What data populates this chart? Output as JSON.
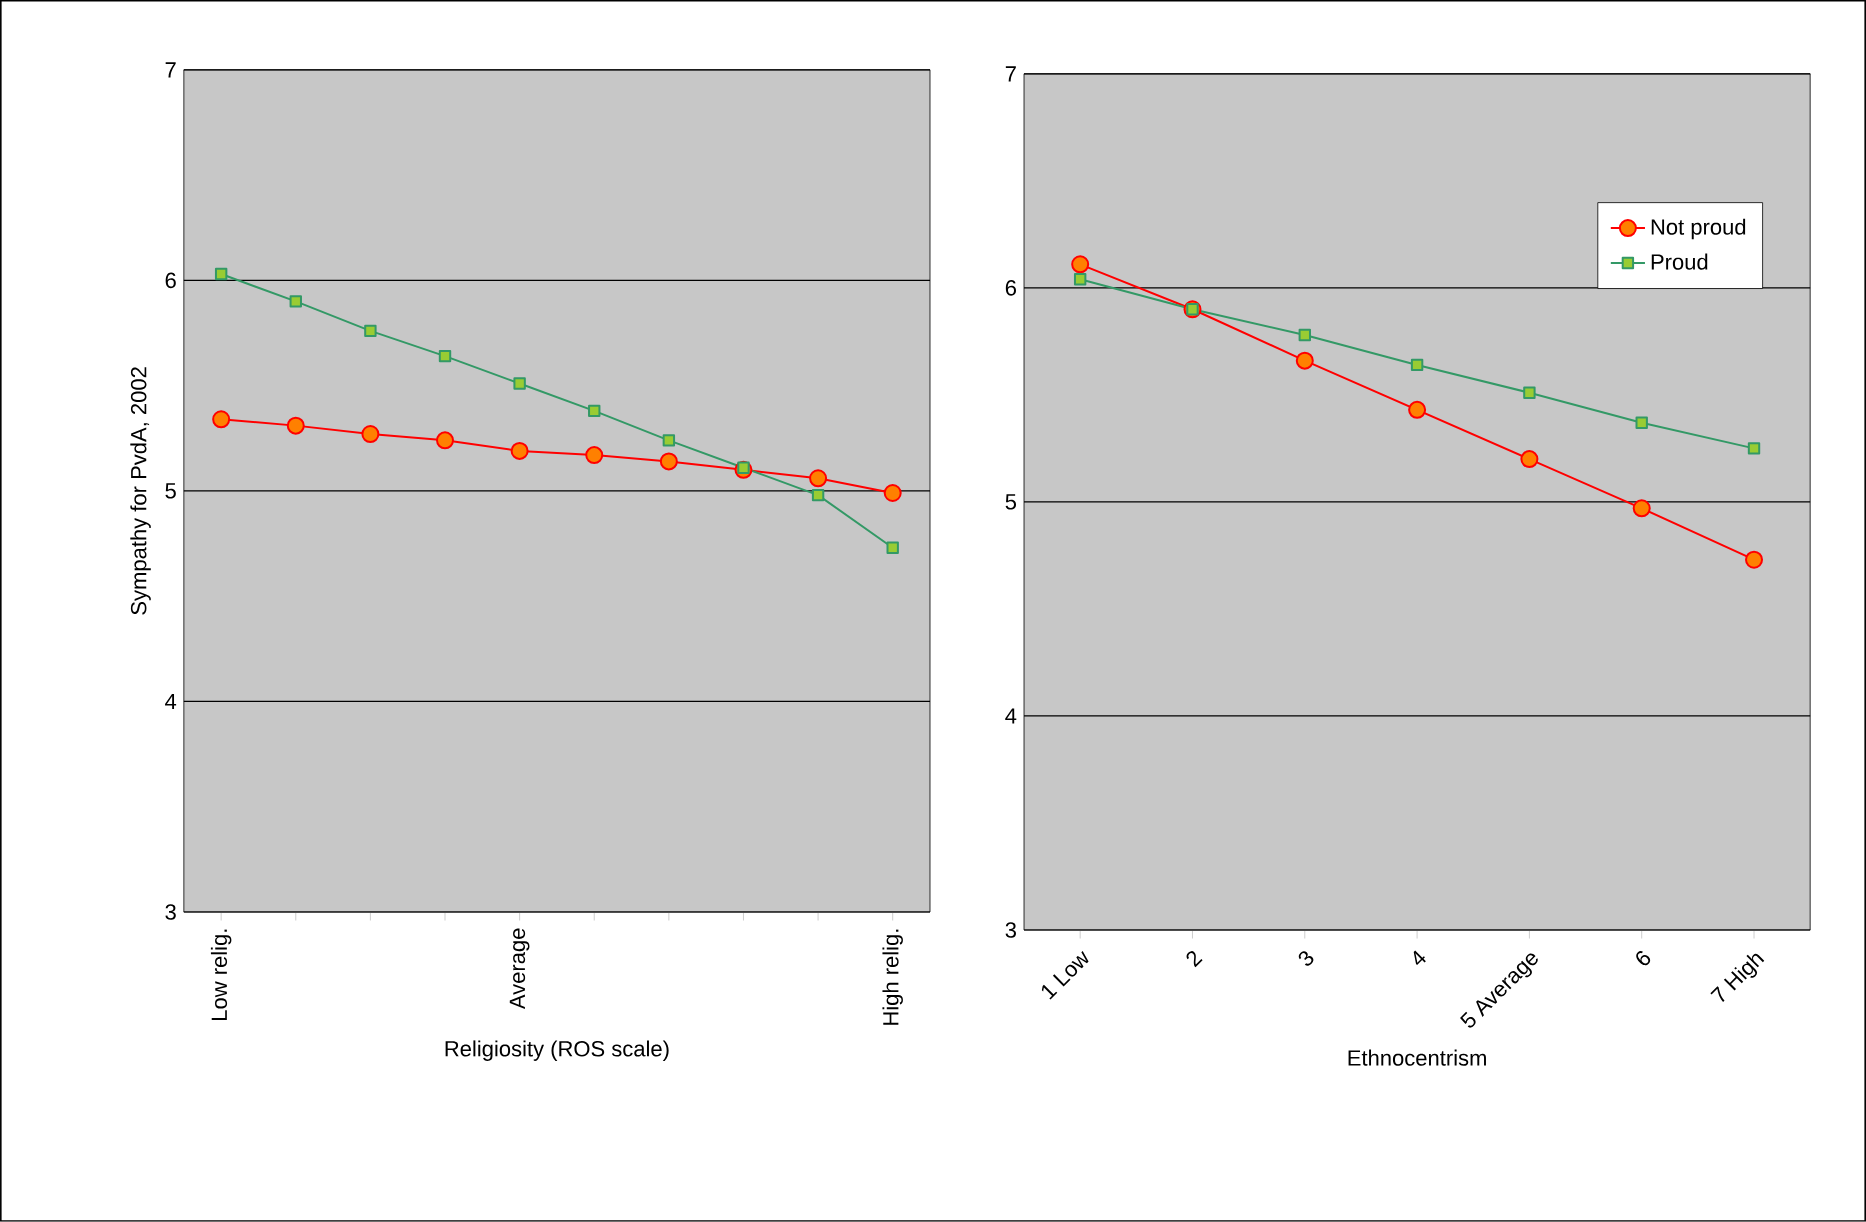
{
  "chart_data": [
    {
      "type": "line",
      "ylabel": "Sympathy for PvdA, 2002",
      "xlabel": "Religiosity (ROS scale)",
      "categories": [
        "Low relig.",
        null,
        null,
        null,
        "Average",
        null,
        null,
        null,
        null,
        "High relig."
      ],
      "ylim": [
        3,
        7
      ],
      "yticks": [
        3,
        4,
        5,
        6,
        7
      ],
      "grid": "y",
      "line_style": "solid",
      "series": [
        {
          "color": "#ff0000",
          "marker": "circle",
          "values": [
            5.34,
            5.31,
            5.27,
            5.24,
            5.19,
            5.17,
            5.14,
            5.1,
            5.06,
            4.99
          ]
        },
        {
          "color": "#339966",
          "marker": "square",
          "values": [
            6.03,
            5.9,
            5.76,
            5.64,
            5.51,
            5.38,
            5.24,
            5.11,
            4.98,
            4.73
          ]
        }
      ]
    },
    {
      "type": "line",
      "xlabel": "Ethnocentrism",
      "categories": [
        "1 Low",
        "2",
        "3",
        "4",
        "5 Average",
        "6",
        "7 High"
      ],
      "ylim": [
        3,
        7
      ],
      "yticks": [
        3,
        4,
        5,
        6,
        7
      ],
      "grid": "y",
      "legend": "top right",
      "line_style": "solid",
      "series": [
        {
          "name": "Not proud",
          "color": "#ff0000",
          "marker": "circle",
          "values": [
            6.11,
            5.9,
            5.66,
            5.43,
            5.2,
            4.97,
            4.73
          ]
        },
        {
          "name": "Proud",
          "color": "#339966",
          "marker": "square",
          "values": [
            6.04,
            5.9,
            5.78,
            5.64,
            5.51,
            5.37,
            5.25
          ]
        }
      ]
    }
  ]
}
